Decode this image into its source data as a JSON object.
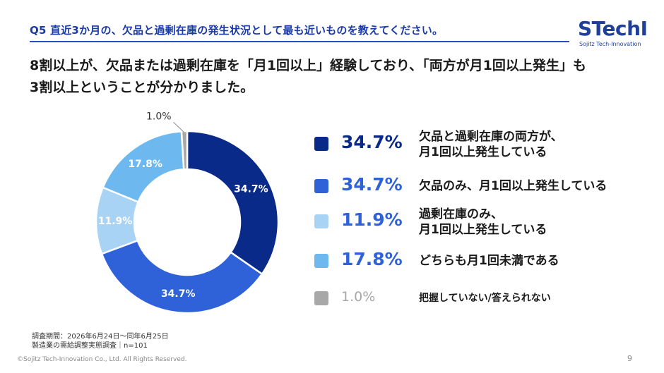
{
  "header": {
    "title": "Q5 直近3か月の、欠品と過剰在庫の発生状況として最も近いものを教えてください。"
  },
  "logo": {
    "main": "STechI",
    "sub": "Sojitz Tech-Innovation"
  },
  "headline": {
    "line1": "8割以上が、欠品または過剰在庫を「月1回以上」経験しており、「両方が月1回以上発生」も",
    "line2": "3割以上ということが分かりました。"
  },
  "chart_data": {
    "type": "pie",
    "donut": true,
    "start_angle_deg": 0,
    "direction": "clockwise",
    "slices": [
      {
        "key": "both",
        "value": 34.7,
        "label": "34.7%",
        "color": "#0a2a8a",
        "label_color": "#ffffff",
        "legend_value_color": "#0a2a8a",
        "legend_label": [
          "欠品と過剰在庫の両方が、",
          "月1回以上発生している"
        ]
      },
      {
        "key": "shortage_only",
        "value": 34.7,
        "label": "34.7%",
        "color": "#2f62d9",
        "label_color": "#ffffff",
        "legend_value_color": "#2f62d9",
        "legend_label": [
          "欠品のみ、月1回以上発生している"
        ]
      },
      {
        "key": "excess_only",
        "value": 11.9,
        "label": "11.9%",
        "color": "#a9d3f5",
        "label_color": "#ffffff",
        "legend_value_color": "#2f62d9",
        "legend_label": [
          "過剰在庫のみ、",
          "月1回以上発生している"
        ]
      },
      {
        "key": "neither",
        "value": 17.8,
        "label": "17.8%",
        "color": "#6cb8ef",
        "label_color": "#ffffff",
        "legend_value_color": "#2f62d9",
        "legend_label": [
          "どちらも月1回未満である"
        ]
      },
      {
        "key": "unknown",
        "value": 1.0,
        "label": "1.0%",
        "color": "#a8a8a8",
        "label_color": "#333333",
        "legend_value_color": "#a8a8a8",
        "legend_label": [
          "把握していない/答えられない"
        ]
      }
    ]
  },
  "footer": {
    "survey_line1": "調査期間：2026年6月24日～同年6月25日",
    "survey_line2": "製造業の需給調整実態調査｜n=101",
    "copyright": "©Sojitz Tech-Innovation Co., Ltd. All Rights Reserved.",
    "page": "9"
  }
}
